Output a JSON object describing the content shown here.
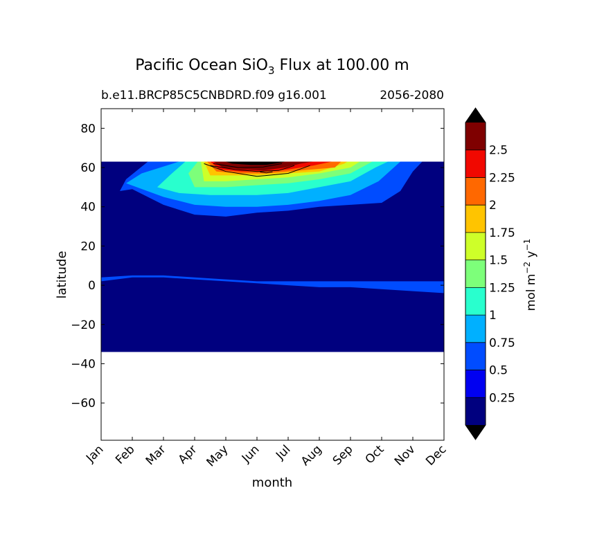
{
  "chart_data": {
    "type": "heatmap",
    "title": {
      "main": "Pacific Ocean SiO",
      "sub": "3",
      "tail": " Flux at 100.00 m"
    },
    "subtitle_left": "b.e11.BRCP85C5CNBDRD.f09 g16.001",
    "subtitle_right": "2056-2080",
    "xlabel": "month",
    "ylabel": "latitude",
    "x_ticks": [
      "Jan",
      "Feb",
      "Mar",
      "Apr",
      "May",
      "Jun",
      "Jul",
      "Aug",
      "Sep",
      "Oct",
      "Nov",
      "Dec"
    ],
    "y_ticks": [
      80,
      60,
      40,
      20,
      0,
      -20,
      -40,
      -60
    ],
    "y_tick_labels": [
      "80",
      "60",
      "40",
      "20",
      "0",
      "−20",
      "−40",
      "−60"
    ],
    "xlim": [
      0,
      11
    ],
    "ylim": [
      -79,
      90
    ],
    "data_lat_range": [
      -34,
      63
    ],
    "colorbar": {
      "label": "mol m",
      "label_sup1": "−2",
      "label_mid": " y",
      "label_sup2": "−1",
      "levels": [
        0,
        0.25,
        0.5,
        0.75,
        1,
        1.25,
        1.5,
        1.75,
        2,
        2.25,
        2.5,
        2.75
      ],
      "tick_labels": [
        "0.25",
        "0.5",
        "0.75",
        "1",
        "1.25",
        "1.5",
        "1.75",
        "2",
        "2.25",
        "2.5"
      ],
      "colors": [
        "#00007f",
        "#0000f1",
        "#004cff",
        "#00b0ff",
        "#29ffce",
        "#7dff7a",
        "#ceff29",
        "#ffc400",
        "#ff6800",
        "#f10800",
        "#7f0000"
      ],
      "extend": "both",
      "under_color": "#000000",
      "over_color": "#000000"
    },
    "contour_bands": [
      {
        "level": 0.25,
        "points": [
          [
            0,
            2
          ],
          [
            1,
            4
          ],
          [
            2,
            4
          ],
          [
            3,
            3
          ],
          [
            4,
            2
          ],
          [
            5,
            1
          ],
          [
            6,
            0
          ],
          [
            7,
            -1
          ],
          [
            8,
            -1
          ],
          [
            9,
            -2
          ],
          [
            10,
            -3
          ],
          [
            11,
            -4
          ],
          [
            11,
            2
          ],
          [
            10,
            2
          ],
          [
            9,
            2
          ],
          [
            8,
            2
          ],
          [
            7,
            2
          ],
          [
            6,
            2
          ],
          [
            5,
            2
          ],
          [
            4,
            3
          ],
          [
            3,
            4
          ],
          [
            2,
            5
          ],
          [
            1,
            5
          ],
          [
            0,
            4
          ]
        ]
      },
      {
        "level": 0.25,
        "points": [
          [
            0.6,
            48
          ],
          [
            1,
            49
          ],
          [
            2,
            41
          ],
          [
            3,
            36
          ],
          [
            4,
            35
          ],
          [
            5,
            37
          ],
          [
            6,
            38
          ],
          [
            7,
            40
          ],
          [
            8,
            41
          ],
          [
            9,
            42
          ],
          [
            9.6,
            48
          ],
          [
            10,
            58
          ],
          [
            10.3,
            63
          ],
          [
            1.5,
            63
          ],
          [
            0.8,
            54
          ]
        ]
      },
      {
        "level": 0.5,
        "points": [
          [
            0.8,
            52
          ],
          [
            2,
            45
          ],
          [
            3,
            41
          ],
          [
            4,
            40
          ],
          [
            5,
            40
          ],
          [
            6,
            41
          ],
          [
            7,
            43
          ],
          [
            8,
            46
          ],
          [
            8.9,
            53
          ],
          [
            9.6,
            63
          ],
          [
            2.5,
            63
          ],
          [
            1.3,
            57
          ]
        ]
      },
      {
        "level": 0.75,
        "points": [
          [
            1.8,
            50
          ],
          [
            2.5,
            47
          ],
          [
            3.5,
            46
          ],
          [
            5,
            46
          ],
          [
            6,
            47
          ],
          [
            7,
            50
          ],
          [
            8,
            53
          ],
          [
            8.8,
            60
          ],
          [
            9.2,
            63
          ],
          [
            2.7,
            63
          ],
          [
            2.2,
            56
          ]
        ]
      },
      {
        "level": 1.0,
        "points": [
          [
            3,
            50
          ],
          [
            4,
            50
          ],
          [
            5,
            51
          ],
          [
            6,
            52
          ],
          [
            7,
            54
          ],
          [
            8,
            57
          ],
          [
            8.7,
            63
          ],
          [
            3.1,
            63
          ],
          [
            2.8,
            57
          ]
        ]
      },
      {
        "level": 1.25,
        "points": [
          [
            3.3,
            53
          ],
          [
            4,
            53
          ],
          [
            5,
            54
          ],
          [
            6,
            55
          ],
          [
            7,
            57
          ],
          [
            8,
            60
          ],
          [
            8.3,
            63
          ],
          [
            3.2,
            63
          ]
        ]
      },
      {
        "level": 1.5,
        "points": [
          [
            3.5,
            56
          ],
          [
            4.3,
            56
          ],
          [
            5,
            56
          ],
          [
            6,
            57
          ],
          [
            7,
            58
          ],
          [
            7.8,
            62
          ],
          [
            7.9,
            63
          ],
          [
            3.3,
            63
          ]
        ]
      },
      {
        "level": 1.75,
        "points": [
          [
            3.7,
            58
          ],
          [
            4.5,
            57
          ],
          [
            5.3,
            57
          ],
          [
            6,
            58
          ],
          [
            7.5,
            60
          ],
          [
            7.7,
            63
          ],
          [
            3.4,
            63
          ]
        ]
      },
      {
        "level": 2.0,
        "points": [
          [
            3.8,
            59
          ],
          [
            4.5,
            58
          ],
          [
            5.3,
            58
          ],
          [
            6,
            59
          ],
          [
            6.8,
            61
          ],
          [
            7.4,
            63
          ],
          [
            3.5,
            63
          ]
        ]
      },
      {
        "level": 2.25,
        "points": [
          [
            3.9,
            60
          ],
          [
            4.6,
            59
          ],
          [
            5.2,
            58.5
          ],
          [
            5.9,
            60
          ],
          [
            6.4,
            62
          ],
          [
            6.8,
            63
          ],
          [
            3.6,
            63
          ]
        ]
      },
      {
        "level": 2.5,
        "points": [
          [
            4,
            61
          ],
          [
            4.7,
            60
          ],
          [
            5.3,
            59.5
          ],
          [
            5.8,
            61
          ],
          [
            6.2,
            63
          ],
          [
            3.7,
            63
          ]
        ]
      },
      {
        "level": 2.75,
        "points": [
          [
            4.2,
            62
          ],
          [
            4.8,
            61.3
          ],
          [
            5.3,
            61.3
          ],
          [
            5.7,
            62.3
          ],
          [
            5.9,
            63
          ],
          [
            4,
            63
          ]
        ]
      }
    ],
    "contour_lines": [
      {
        "points": [
          [
            3.3,
            62
          ],
          [
            4,
            58
          ],
          [
            5,
            55.5
          ],
          [
            6,
            57
          ],
          [
            6.7,
            61
          ]
        ]
      },
      {
        "points": [
          [
            3.5,
            61
          ],
          [
            4.3,
            59
          ],
          [
            5,
            58
          ],
          [
            5.7,
            58.5
          ],
          [
            6.2,
            61
          ]
        ]
      },
      {
        "points": [
          [
            3.6,
            62
          ],
          [
            4.4,
            60
          ],
          [
            5.2,
            60.3
          ],
          [
            5.8,
            62
          ]
        ]
      },
      {
        "points": [
          [
            5.1,
            57.7
          ],
          [
            5.3,
            57.3
          ],
          [
            5.5,
            57.8
          ]
        ]
      }
    ]
  }
}
